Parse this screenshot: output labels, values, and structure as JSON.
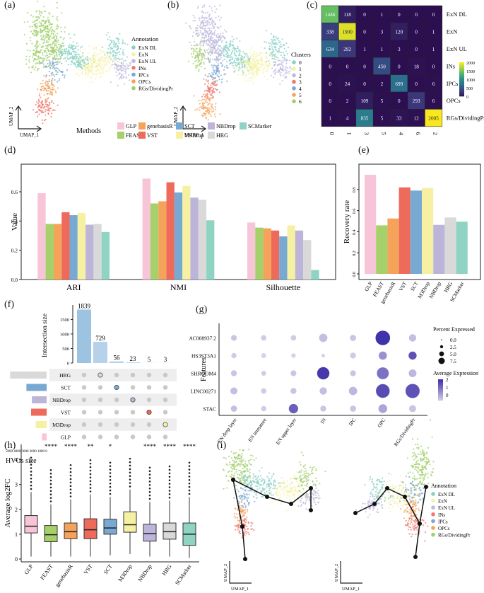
{
  "panel_labels": [
    "(a)",
    "(b)",
    "(c)",
    "(d)",
    "(e)",
    "(f)",
    "(g)",
    "(h)",
    "(i)"
  ],
  "umap_axes": {
    "x": "UMAP_1",
    "y": "UMAP_2"
  },
  "colors": {
    "annotation": [
      "#86d0c8",
      "#f5f2a7",
      "#bfb8de",
      "#ee7a6d",
      "#7ca7d1",
      "#f5a35b",
      "#a2cf6b"
    ],
    "methods": [
      "#f7c4d8",
      "#a5d06a",
      "#f5a35b",
      "#ee6a5b",
      "#78a9d3",
      "#f6f1a2",
      "#bdb4da",
      "#d9d9d9",
      "#8fd4c2"
    ],
    "heatmap_low": "#2d0f52",
    "heatmap_mid": "#2a8a8e",
    "heatmap_high": "#f9e71f"
  },
  "panel_a": {
    "legend_title": "Annotation",
    "legend_items": [
      "ExN DL",
      "ExN",
      "ExN UL",
      "INs",
      "IPCs",
      "OPCs",
      "RGs/DividingPr"
    ]
  },
  "panel_b": {
    "legend_title": "Clusters",
    "legend_items": [
      "0",
      "1",
      "2",
      "3",
      "4",
      "5",
      "6"
    ],
    "colors": [
      "#86d0c8",
      "#f5f2a7",
      "#bfb8de",
      "#ee7a6d",
      "#7ca7d1",
      "#f5a35b",
      "#a2cf6b"
    ]
  },
  "chart_data": [
    {
      "id": "c",
      "type": "heatmap",
      "row_labels": [
        "ExN DL",
        "ExN",
        "ExN UL",
        "INs",
        "IPCs",
        "OPCs",
        "RGs/DividingPr"
      ],
      "col_labels": [
        "0",
        "1",
        "3",
        "5",
        "4",
        "6",
        "2"
      ],
      "values": [
        [
          1446,
          118,
          0,
          1,
          0,
          0,
          0
        ],
        [
          338,
          1900,
          0,
          3,
          120,
          0,
          1
        ],
        [
          634,
          292,
          1,
          1,
          3,
          0,
          1
        ],
        [
          0,
          0,
          0,
          450,
          0,
          18,
          0
        ],
        [
          0,
          24,
          0,
          2,
          699,
          0,
          6
        ],
        [
          0,
          2,
          109,
          5,
          0,
          293,
          6
        ],
        [
          1,
          4,
          835,
          5,
          33,
          12,
          2005
        ]
      ],
      "colorbar_ticks": [
        "2000",
        "1500",
        "1000",
        "500",
        "0"
      ],
      "colorbar_range": [
        0,
        2000
      ]
    },
    {
      "id": "d",
      "type": "bar",
      "legend_title": "Methods",
      "legend_items": [
        "GLP",
        "FEAST",
        "genebasisR",
        "VST",
        "SCT",
        "M3Drop",
        "NBDrop",
        "HRG",
        "SCMarker"
      ],
      "categories": [
        "ARI",
        "NMI",
        "Silhouette"
      ],
      "series": [
        {
          "name": "GLP",
          "values": [
            0.59,
            0.69,
            0.39
          ]
        },
        {
          "name": "FEAST",
          "values": [
            0.38,
            0.52,
            0.355
          ]
        },
        {
          "name": "genebasisR",
          "values": [
            0.38,
            0.535,
            0.35
          ]
        },
        {
          "name": "VST",
          "values": [
            0.46,
            0.665,
            0.335
          ]
        },
        {
          "name": "SCT",
          "values": [
            0.44,
            0.595,
            0.295
          ]
        },
        {
          "name": "M3Drop",
          "values": [
            0.455,
            0.64,
            0.37
          ]
        },
        {
          "name": "NBDrop",
          "values": [
            0.375,
            0.56,
            0.335
          ]
        },
        {
          "name": "HRG",
          "values": [
            0.38,
            0.545,
            0.27
          ]
        },
        {
          "name": "SCMarker",
          "values": [
            0.325,
            0.405,
            0.065
          ]
        }
      ],
      "ylabel": "Value",
      "yticks": [
        "0.0",
        "0.2",
        "0.4",
        "0.6"
      ],
      "ylim": [
        0,
        0.75
      ]
    },
    {
      "id": "e",
      "type": "bar",
      "categories": [
        "GLP",
        "FEAST",
        "genebasisR",
        "VST",
        "SCT",
        "M3Drop",
        "NBDrop",
        "HRG",
        "SCMarker"
      ],
      "values": [
        0.94,
        0.46,
        0.525,
        0.82,
        0.79,
        0.815,
        0.465,
        0.535,
        0.495
      ],
      "ylabel": "Recovery rate",
      "yticks": [
        "0.0",
        "0.2",
        "0.4",
        "0.6",
        "0.8"
      ],
      "ylim": [
        0,
        1.0
      ]
    },
    {
      "id": "f",
      "type": "bar",
      "ylabel": "Intersection size",
      "xlabel": "HVGs size",
      "bars": [
        1839,
        729,
        56,
        23,
        5,
        3
      ],
      "bar_labels": [
        "1839",
        "729",
        "56",
        "23",
        "5",
        "3"
      ],
      "yticks": [
        "0",
        "500",
        "1000",
        "1500"
      ],
      "ylim": [
        0,
        1900
      ],
      "set_names": [
        "HRG",
        "SCT",
        "NBDrop",
        "VST",
        "M3Drop",
        "GLP"
      ],
      "set_sizes": [
        4700,
        2600,
        1900,
        2000,
        1400,
        600
      ],
      "set_axis_ticks": "5000 4000 3000 2000 1000 0",
      "membership": [
        -1,
        0,
        1,
        2,
        3,
        4
      ],
      "highlight_colors": [
        "#d9d9d9",
        "#78a9d3",
        "#bdb4da",
        "#ee6a5b",
        "#f6f1a2",
        "#f7c4d8"
      ]
    },
    {
      "id": "g",
      "type": "scatter",
      "subtype": "dotplot",
      "features": [
        "AC008937.2",
        "HS3ST3A1",
        "SHROOM4",
        "LINC00271",
        "STAC"
      ],
      "cell_types": [
        "EN deep layer",
        "EN immature",
        "EN upper layer",
        "IN",
        "IPC",
        "OPC",
        "RGs/DividingPr"
      ],
      "ylabel": "Features",
      "pct_legend_title": "Percent Expressed",
      "pct_legend_values": [
        "0.0",
        "2.5",
        "5.0",
        "7.5"
      ],
      "expr_legend_title": "Average Expression",
      "expr_ticks": [
        "2",
        "1",
        "0"
      ],
      "size": [
        [
          0.8,
          0.7,
          0.7,
          2.2,
          1.0,
          8.0,
          1.6
        ],
        [
          0.6,
          0.5,
          0.4,
          0.2,
          0.9,
          2.1,
          2.0
        ],
        [
          0.9,
          0.5,
          0.8,
          5.5,
          0.8,
          5.0,
          1.8
        ],
        [
          1.4,
          0.7,
          0.9,
          1.6,
          2.2,
          7.0,
          7.5
        ],
        [
          1.0,
          0.6,
          2.8,
          0.9,
          1.0,
          2.4,
          1.4
        ]
      ],
      "expression": [
        [
          -0.3,
          -0.4,
          -0.4,
          -0.2,
          -0.3,
          2.0,
          -0.2
        ],
        [
          -0.4,
          -0.5,
          -0.5,
          -0.5,
          -0.4,
          0.5,
          1.5
        ],
        [
          -0.3,
          -0.4,
          -0.3,
          1.9,
          -0.3,
          1.0,
          -0.1
        ],
        [
          -0.2,
          -0.4,
          -0.3,
          -0.2,
          -0.1,
          1.6,
          1.5
        ],
        [
          -0.2,
          -0.4,
          1.3,
          -0.3,
          -0.3,
          0.2,
          -0.3
        ]
      ]
    },
    {
      "id": "h",
      "type": "box",
      "categories": [
        "GLP",
        "FEAST",
        "genebasisR",
        "VST",
        "SCT",
        "M3Drop",
        "NBDrop",
        "HRG",
        "SCMarker"
      ],
      "ylabel": "Average log2FC",
      "yticks": [
        "0",
        "1",
        "2",
        "3",
        "4"
      ],
      "ylim": [
        0,
        4.5
      ],
      "significance": [
        "",
        "****",
        "****",
        "**",
        "*",
        "",
        "****",
        "****",
        "****"
      ],
      "boxes": [
        {
          "q1": 1.05,
          "median": 1.32,
          "q3": 1.75,
          "lo": 0.1,
          "hi": 2.7
        },
        {
          "q1": 0.7,
          "median": 0.98,
          "q3": 1.35,
          "lo": 0.1,
          "hi": 2.2
        },
        {
          "q1": 0.82,
          "median": 1.1,
          "q3": 1.45,
          "lo": 0.1,
          "hi": 2.4
        },
        {
          "q1": 0.82,
          "median": 1.18,
          "q3": 1.62,
          "lo": 0.1,
          "hi": 2.6
        },
        {
          "q1": 1.0,
          "median": 1.25,
          "q3": 1.6,
          "lo": 0.15,
          "hi": 2.5
        },
        {
          "q1": 1.08,
          "median": 1.38,
          "q3": 1.9,
          "lo": 0.2,
          "hi": 2.8
        },
        {
          "q1": 0.72,
          "median": 1.02,
          "q3": 1.4,
          "lo": 0.1,
          "hi": 2.3
        },
        {
          "q1": 0.8,
          "median": 1.1,
          "q3": 1.45,
          "lo": 0.1,
          "hi": 2.35
        },
        {
          "q1": 0.55,
          "median": 1.0,
          "q3": 1.45,
          "lo": 0.05,
          "hi": 2.5
        }
      ]
    }
  ],
  "panel_i": {
    "legend_title": "Annotation",
    "legend_items": [
      "ExN DL",
      "ExN",
      "ExN UL",
      "INs",
      "IPCs",
      "OPCs",
      "RGs/DividingPr"
    ]
  }
}
